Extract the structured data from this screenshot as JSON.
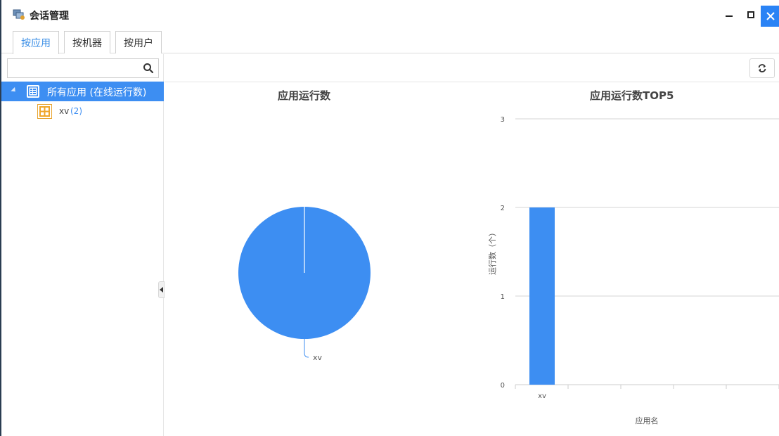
{
  "window": {
    "title": "会话管理",
    "colors": {
      "accent": "#3d8ef2",
      "close": "#2a83f5",
      "chart": "#3d8ef2"
    }
  },
  "tabs": [
    {
      "label": "按应用",
      "active": true
    },
    {
      "label": "按机器",
      "active": false
    },
    {
      "label": "按用户",
      "active": false
    }
  ],
  "search": {
    "value": "",
    "placeholder": ""
  },
  "tree": {
    "root": {
      "label": "所有应用 (在线运行数)",
      "expanded": true,
      "selected": true
    },
    "children": [
      {
        "label": "xv",
        "count": "(2)"
      }
    ]
  },
  "pie": {
    "title": "应用运行数",
    "chart_data": {
      "type": "pie",
      "slices": [
        {
          "label": "xv",
          "value": 2
        }
      ]
    }
  },
  "bar": {
    "title": "应用运行数TOP5",
    "chart_data": {
      "type": "bar",
      "categories": [
        "xv"
      ],
      "values": [
        2
      ],
      "xlabel": "应用名",
      "ylabel": "运行数（个）",
      "ylim": [
        0,
        3
      ],
      "yticks": [
        "0",
        "1",
        "2",
        "3"
      ],
      "grid": true
    }
  }
}
